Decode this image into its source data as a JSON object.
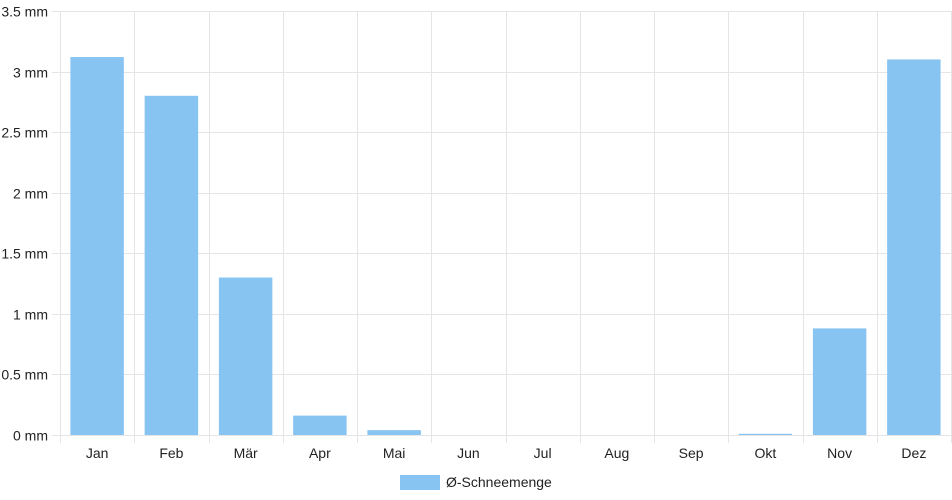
{
  "chart_data": {
    "type": "bar",
    "categories": [
      "Jan",
      "Feb",
      "Mär",
      "Apr",
      "Mai",
      "Jun",
      "Jul",
      "Aug",
      "Sep",
      "Okt",
      "Nov",
      "Dez"
    ],
    "series": [
      {
        "name": "Ø-Schneemenge",
        "values": [
          3.12,
          2.8,
          1.3,
          0.16,
          0.04,
          0,
          0,
          0,
          0,
          0.01,
          0.88,
          3.1
        ],
        "color": "#88c4f2"
      }
    ],
    "ylim": [
      0,
      3.5
    ],
    "y_ticks": [
      "0 mm",
      "0.5 mm",
      "1 mm",
      "1.5 mm",
      "2 mm",
      "2.5 mm",
      "3 mm",
      "3.5 mm"
    ],
    "grid": true,
    "legend_position": "bottom-center",
    "grid_color": "#e5e5e5"
  }
}
